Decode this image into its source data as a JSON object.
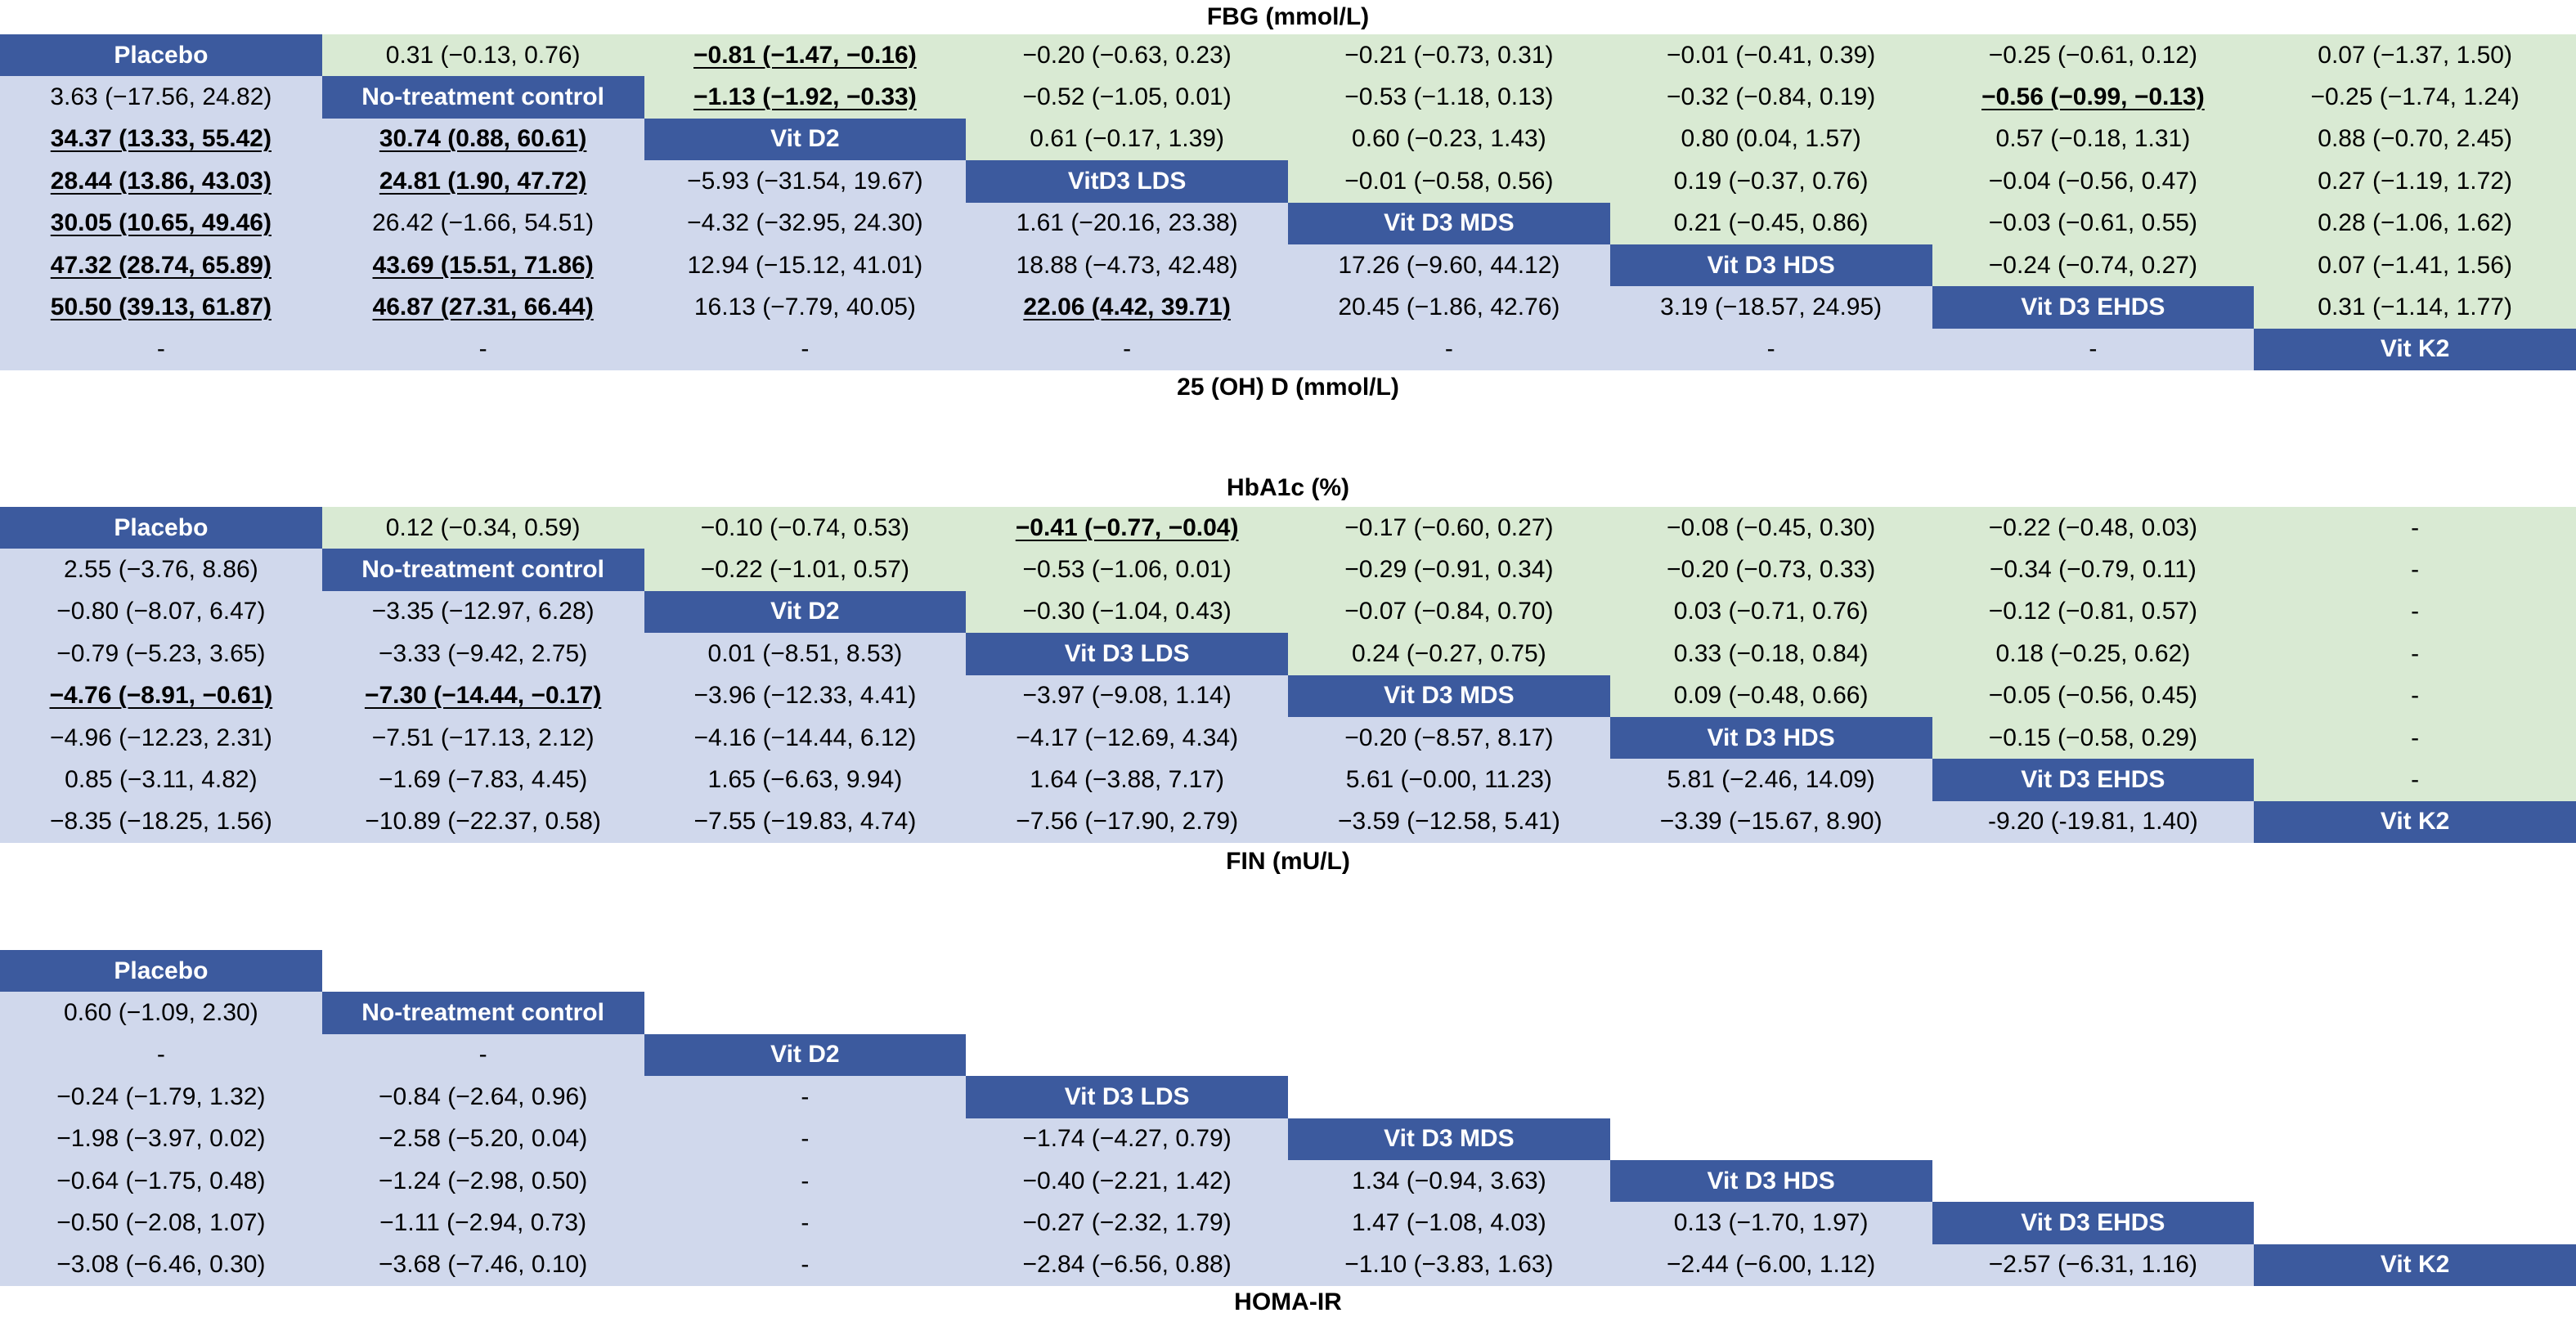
{
  "tables": [
    {
      "top_label": "FBG (mmol/L)",
      "bottom_label": "25 (OH) D (mmol/L)",
      "rows": [
        [
          "Placebo",
          "0.31 (−0.13, 0.76)",
          "−0.81 (−1.47, −0.16)",
          "−0.20 (−0.63, 0.23)",
          "−0.21 (−0.73, 0.31)",
          "−0.01 (−0.41, 0.39)",
          "−0.25 (−0.61, 0.12)",
          "0.07 (−1.37, 1.50)"
        ],
        [
          "3.63 (−17.56, 24.82)",
          "No-treatment control",
          "−1.13 (−1.92, −0.33)",
          "−0.52 (−1.05, 0.01)",
          "−0.53 (−1.18, 0.13)",
          "−0.32 (−0.84, 0.19)",
          "−0.56 (−0.99, −0.13)",
          "−0.25 (−1.74, 1.24)"
        ],
        [
          "34.37 (13.33, 55.42)",
          "30.74 (0.88, 60.61)",
          "Vit D2",
          "0.61 (−0.17, 1.39)",
          "0.60 (−0.23, 1.43)",
          "0.80 (0.04, 1.57)",
          "0.57 (−0.18, 1.31)",
          "0.88 (−0.70, 2.45)"
        ],
        [
          "28.44 (13.86, 43.03)",
          "24.81 (1.90, 47.72)",
          "−5.93 (−31.54, 19.67)",
          "VitD3 LDS",
          "−0.01 (−0.58, 0.56)",
          "0.19 (−0.37, 0.76)",
          "−0.04 (−0.56, 0.47)",
          "0.27 (−1.19, 1.72)"
        ],
        [
          "30.05 (10.65, 49.46)",
          "26.42 (−1.66, 54.51)",
          "−4.32 (−32.95, 24.30)",
          "1.61 (−20.16, 23.38)",
          "Vit D3 MDS",
          "0.21 (−0.45, 0.86)",
          "−0.03 (−0.61, 0.55)",
          "0.28 (−1.06, 1.62)"
        ],
        [
          "47.32 (28.74, 65.89)",
          "43.69 (15.51, 71.86)",
          "12.94 (−15.12, 41.01)",
          "18.88 (−4.73, 42.48)",
          "17.26 (−9.60, 44.12)",
          "Vit D3 HDS",
          "−0.24 (−0.74, 0.27)",
          "0.07 (−1.41, 1.56)"
        ],
        [
          "50.50 (39.13, 61.87)",
          "46.87 (27.31, 66.44)",
          "16.13 (−7.79, 40.05)",
          "22.06 (4.42, 39.71)",
          "20.45 (−1.86, 42.76)",
          "3.19 (−18.57, 24.95)",
          "Vit D3 EHDS",
          "0.31 (−1.14, 1.77)"
        ],
        [
          "-",
          "-",
          "-",
          "-",
          "-",
          "-",
          "-",
          "Vit K2"
        ]
      ],
      "significant": [
        [
          0,
          2
        ],
        [
          1,
          2
        ],
        [
          1,
          6
        ],
        [
          2,
          0
        ],
        [
          2,
          1
        ],
        [
          3,
          0
        ],
        [
          3,
          1
        ],
        [
          4,
          0
        ],
        [
          5,
          0
        ],
        [
          5,
          1
        ],
        [
          6,
          0
        ],
        [
          6,
          1
        ],
        [
          6,
          3
        ]
      ]
    },
    {
      "top_label": "HbA1c (%)",
      "bottom_label": "FIN (mU/L)",
      "rows": [
        [
          "Placebo",
          "0.12 (−0.34, 0.59)",
          "−0.10 (−0.74, 0.53)",
          "−0.41 (−0.77, −0.04)",
          "−0.17 (−0.60, 0.27)",
          "−0.08 (−0.45, 0.30)",
          "−0.22 (−0.48, 0.03)",
          "-"
        ],
        [
          "2.55 (−3.76, 8.86)",
          "No-treatment control",
          "−0.22 (−1.01, 0.57)",
          "−0.53 (−1.06, 0.01)",
          "−0.29 (−0.91, 0.34)",
          "−0.20 (−0.73, 0.33)",
          "−0.34 (−0.79, 0.11)",
          "-"
        ],
        [
          "−0.80 (−8.07, 6.47)",
          "−3.35 (−12.97, 6.28)",
          "Vit D2",
          "−0.30 (−1.04, 0.43)",
          "−0.07 (−0.84, 0.70)",
          "0.03 (−0.71, 0.76)",
          "−0.12 (−0.81, 0.57)",
          "-"
        ],
        [
          "−0.79 (−5.23, 3.65)",
          "−3.33 (−9.42, 2.75)",
          "0.01 (−8.51, 8.53)",
          "Vit D3 LDS",
          "0.24 (−0.27, 0.75)",
          "0.33 (−0.18, 0.84)",
          "0.18 (−0.25, 0.62)",
          "-"
        ],
        [
          "−4.76 (−8.91, −0.61)",
          "−7.30 (−14.44, −0.17)",
          "−3.96 (−12.33, 4.41)",
          "−3.97 (−9.08, 1.14)",
          "Vit D3 MDS",
          "0.09 (−0.48, 0.66)",
          "−0.05 (−0.56, 0.45)",
          "-"
        ],
        [
          "−4.96 (−12.23, 2.31)",
          "−7.51 (−17.13, 2.12)",
          "−4.16 (−14.44, 6.12)",
          "−4.17 (−12.69, 4.34)",
          "−0.20 (−8.57, 8.17)",
          "Vit D3 HDS",
          "−0.15 (−0.58, 0.29)",
          "-"
        ],
        [
          "0.85 (−3.11, 4.82)",
          "−1.69 (−7.83, 4.45)",
          "1.65 (−6.63, 9.94)",
          "1.64 (−3.88, 7.17)",
          "5.61 (−0.00, 11.23)",
          "5.81 (−2.46, 14.09)",
          "Vit D3 EHDS",
          "-"
        ],
        [
          "−8.35 (−18.25, 1.56)",
          "−10.89 (−22.37, 0.58)",
          "−7.55 (−19.83, 4.74)",
          "−7.56 (−17.90, 2.79)",
          "−3.59 (−12.58, 5.41)",
          "−3.39 (−15.67, 8.90)",
          "-9.20 (-19.81, 1.40)",
          "Vit K2"
        ]
      ],
      "significant": [
        [
          0,
          3
        ],
        [
          4,
          0
        ],
        [
          4,
          1
        ]
      ]
    },
    {
      "top_label": "",
      "bottom_label": "HOMA-IR",
      "lower_only": true,
      "rows": [
        [
          "Placebo",
          "",
          "",
          "",
          "",
          "",
          "",
          ""
        ],
        [
          "0.60 (−1.09, 2.30)",
          "No-treatment control",
          "",
          "",
          "",
          "",
          "",
          ""
        ],
        [
          "-",
          "-",
          "Vit D2",
          "",
          "",
          "",
          "",
          ""
        ],
        [
          "−0.24 (−1.79, 1.32)",
          "−0.84 (−2.64, 0.96)",
          "-",
          "Vit D3 LDS",
          "",
          "",
          "",
          ""
        ],
        [
          "−1.98 (−3.97, 0.02)",
          "−2.58 (−5.20, 0.04)",
          "-",
          "−1.74 (−4.27, 0.79)",
          "Vit D3 MDS",
          "",
          "",
          ""
        ],
        [
          "−0.64 (−1.75, 0.48)",
          "−1.24 (−2.98, 0.50)",
          "-",
          "−0.40 (−2.21, 1.42)",
          "1.34 (−0.94, 3.63)",
          "Vit D3 HDS",
          "",
          ""
        ],
        [
          "−0.50 (−2.08, 1.07)",
          "−1.11 (−2.94, 0.73)",
          "-",
          "−0.27 (−2.32, 1.79)",
          "1.47 (−1.08, 4.03)",
          "0.13 (−1.70, 1.97)",
          "Vit D3 EHDS",
          ""
        ],
        [
          "−3.08 (−6.46, 0.30)",
          "−3.68 (−7.46, 0.10)",
          "-",
          "−2.84 (−6.56, 0.88)",
          "−1.10 (−3.83, 1.63)",
          "−2.44 (−6.00, 1.12)",
          "−2.57 (−6.31, 1.16)",
          "Vit K2"
        ]
      ],
      "significant": []
    }
  ],
  "colors": {
    "upper_triangle": "#d9ead3",
    "lower_triangle": "#d0d8ec",
    "diagonal": "#3c5a9e",
    "diagonal_text": "#ffffff"
  }
}
